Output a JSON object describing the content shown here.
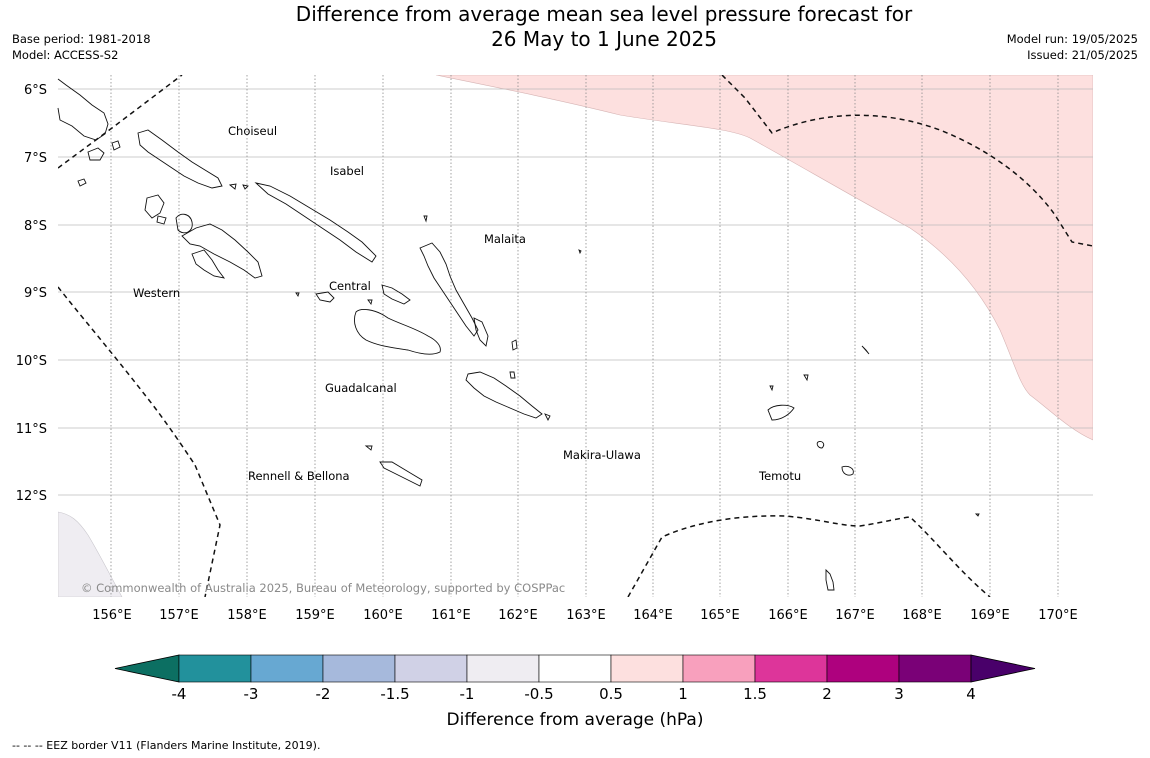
{
  "header": {
    "title_line1": "Difference from average mean sea level pressure forecast for",
    "title_line2": "26 May to 1 June 2025",
    "base_period": "Base period: 1981-2018",
    "model": "Model: ACCESS-S2",
    "model_run": "Model run: 19/05/2025",
    "issued": "Issued: 21/05/2025"
  },
  "map": {
    "region": "Solomon Islands",
    "latitude_labels": [
      "6°S",
      "7°S",
      "8°S",
      "9°S",
      "10°S",
      "11°S",
      "12°S"
    ],
    "longitude_labels": [
      "156°E",
      "157°E",
      "158°E",
      "159°E",
      "160°E",
      "161°E",
      "162°E",
      "163°E",
      "164°E",
      "165°E",
      "166°E",
      "167°E",
      "168°E",
      "169°E",
      "170°E"
    ],
    "provinces": [
      "Choiseul",
      "Isabel",
      "Malaita",
      "Western",
      "Central",
      "Guadalcanal",
      "Makira-Ulawa",
      "Rennell & Bellona",
      "Temotu"
    ],
    "shaded_anomaly": {
      "range": "0.5 to 1",
      "region": "north-east",
      "color": "#fde0df"
    },
    "shaded_anomaly_sw": {
      "range": "-1 to -0.5",
      "region": "south-west corner",
      "color": "#efedf2"
    },
    "copyright": "© Commonwealth of Australia 2025, Bureau of Meteorology, supported by COSPPac"
  },
  "colorbar": {
    "title": "Difference from average (hPa)",
    "tick_labels": [
      "-4",
      "-3",
      "-2",
      "-1.5",
      "-1",
      "-0.5",
      "0.5",
      "1",
      "1.5",
      "2",
      "3",
      "4"
    ],
    "colors": [
      "#0c6f62",
      "#22919c",
      "#67a8d2",
      "#a6b9dc",
      "#d0d1e6",
      "#efedf2",
      "#ffffff",
      "#fde0df",
      "#f8a0bd",
      "#dd359a",
      "#ae017e",
      "#7a0177",
      "#49006a"
    ]
  },
  "footnote": "-- -- -- EEZ border V11 (Flanders Marine Institute, 2019)."
}
